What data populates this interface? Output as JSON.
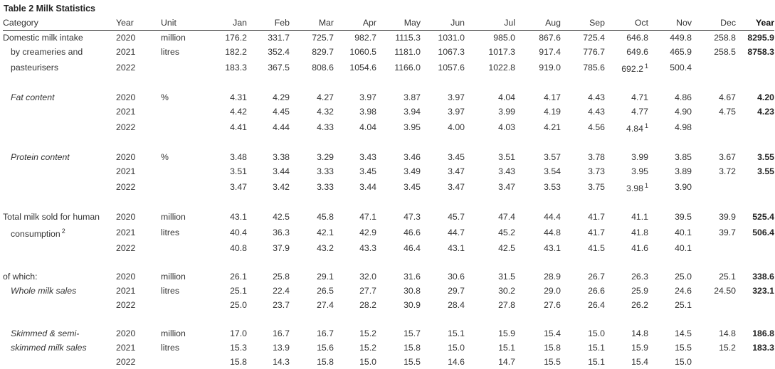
{
  "title": "Table 2 Milk Statistics",
  "header": {
    "category": "Category",
    "year": "Year",
    "unit": "Unit",
    "months": [
      "Jan",
      "Feb",
      "Mar",
      "Apr",
      "May",
      "Jun",
      "Jul",
      "Aug",
      "Sep",
      "Oct",
      "Nov",
      "Dec"
    ],
    "year_total": "Year"
  },
  "groups": [
    {
      "rows": [
        {
          "cat": "Domestic milk intake",
          "year": "2020",
          "unit": "million",
          "v": [
            "176.2",
            "331.7",
            "725.7",
            "982.7",
            "1115.3",
            "1031.0",
            "985.0",
            "867.6",
            "725.4",
            "646.8",
            "449.8",
            "258.8"
          ],
          "total": "8295.9"
        },
        {
          "cat": "by creameries and",
          "year": "2021",
          "unit": "litres",
          "v": [
            "182.2",
            "352.4",
            "829.7",
            "1060.5",
            "1181.0",
            "1067.3",
            "1017.3",
            "917.4",
            "776.7",
            "649.6",
            "465.9",
            "258.5"
          ],
          "total": "8758.3"
        },
        {
          "cat": "pasteurisers",
          "year": "2022",
          "unit": "",
          "v": [
            "183.3",
            "367.5",
            "808.6",
            "1054.6",
            "1166.0",
            "1057.6",
            "1022.8",
            "919.0",
            "785.6",
            "692.2",
            "500.4",
            ""
          ],
          "total": "",
          "sup": "1"
        }
      ]
    },
    {
      "rows": [
        {
          "cat": "Fat content",
          "year": "2020",
          "unit": "%",
          "v": [
            "4.31",
            "4.29",
            "4.27",
            "3.97",
            "3.87",
            "3.97",
            "4.04",
            "4.17",
            "4.43",
            "4.71",
            "4.86",
            "4.67"
          ],
          "total": "4.20"
        },
        {
          "cat": "",
          "year": "2021",
          "unit": "",
          "v": [
            "4.42",
            "4.45",
            "4.32",
            "3.98",
            "3.94",
            "3.97",
            "3.99",
            "4.19",
            "4.43",
            "4.77",
            "4.90",
            "4.75"
          ],
          "total": "4.23"
        },
        {
          "cat": "",
          "year": "2022",
          "unit": "",
          "v": [
            "4.41",
            "4.44",
            "4.33",
            "4.04",
            "3.95",
            "4.00",
            "4.03",
            "4.21",
            "4.56",
            "4.84",
            "4.98",
            ""
          ],
          "total": "",
          "sup": "1"
        }
      ]
    },
    {
      "rows": [
        {
          "cat": "Protein content",
          "year": "2020",
          "unit": "%",
          "v": [
            "3.48",
            "3.38",
            "3.29",
            "3.43",
            "3.46",
            "3.45",
            "3.51",
            "3.57",
            "3.78",
            "3.99",
            "3.85",
            "3.67"
          ],
          "total": "3.55"
        },
        {
          "cat": "",
          "year": "2021",
          "unit": "",
          "v": [
            "3.51",
            "3.44",
            "3.33",
            "3.45",
            "3.49",
            "3.47",
            "3.43",
            "3.54",
            "3.73",
            "3.95",
            "3.89",
            "3.72"
          ],
          "total": "3.55"
        },
        {
          "cat": "",
          "year": "2022",
          "unit": "",
          "v": [
            "3.47",
            "3.42",
            "3.33",
            "3.44",
            "3.45",
            "3.47",
            "3.47",
            "3.53",
            "3.75",
            "3.98",
            "3.90",
            ""
          ],
          "total": "",
          "sup": "1"
        }
      ]
    },
    {
      "rows": [
        {
          "cat": "Total milk sold for human",
          "year": "2020",
          "unit": "million",
          "v": [
            "43.1",
            "42.5",
            "45.8",
            "47.1",
            "47.3",
            "45.7",
            "47.4",
            "44.4",
            "41.7",
            "41.1",
            "39.5",
            "39.9"
          ],
          "total": "525.4"
        },
        {
          "cat": "consumption",
          "cat_sup": "2",
          "year": "2021",
          "unit": "litres",
          "v": [
            "40.4",
            "36.3",
            "42.1",
            "42.9",
            "46.6",
            "44.7",
            "45.2",
            "44.8",
            "41.7",
            "41.8",
            "40.1",
            "39.7"
          ],
          "total": "506.4"
        },
        {
          "cat": "",
          "year": "2022",
          "unit": "",
          "v": [
            "40.8",
            "37.9",
            "43.2",
            "43.3",
            "46.4",
            "43.1",
            "42.5",
            "43.1",
            "41.5",
            "41.6",
            "40.1",
            ""
          ],
          "total": ""
        }
      ]
    },
    {
      "rows": [
        {
          "cat": "of which:",
          "year": "2020",
          "unit": "million",
          "v": [
            "26.1",
            "25.8",
            "29.1",
            "32.0",
            "31.6",
            "30.6",
            "31.5",
            "28.9",
            "26.7",
            "26.3",
            "25.0",
            "25.1"
          ],
          "total": "338.6"
        },
        {
          "cat": "Whole milk sales",
          "year": "2021",
          "unit": "litres",
          "v": [
            "25.1",
            "22.4",
            "26.5",
            "27.7",
            "30.8",
            "29.7",
            "30.2",
            "29.0",
            "26.6",
            "25.9",
            "24.6",
            "24.50"
          ],
          "total": "323.1"
        },
        {
          "cat": "",
          "year": "2022",
          "unit": "",
          "v": [
            "25.0",
            "23.7",
            "27.4",
            "28.2",
            "30.9",
            "28.4",
            "27.8",
            "27.6",
            "26.4",
            "26.2",
            "25.1",
            ""
          ],
          "total": ""
        }
      ]
    },
    {
      "rows": [
        {
          "cat": "Skimmed  & semi-",
          "year": "2020",
          "unit": "million",
          "v": [
            "17.0",
            "16.7",
            "16.7",
            "15.2",
            "15.7",
            "15.1",
            "15.9",
            "15.4",
            "15.0",
            "14.8",
            "14.5",
            "14.8"
          ],
          "total": "186.8"
        },
        {
          "cat": "skimmed milk sales",
          "year": "2021",
          "unit": "litres",
          "v": [
            "15.3",
            "13.9",
            "15.6",
            "15.2",
            "15.8",
            "15.0",
            "15.1",
            "15.8",
            "15.1",
            "15.9",
            "15.5",
            "15.2"
          ],
          "total": "183.3"
        },
        {
          "cat": "",
          "year": "2022",
          "unit": "",
          "v": [
            "15.8",
            "14.3",
            "15.8",
            "15.0",
            "15.5",
            "14.6",
            "14.7",
            "15.5",
            "15.1",
            "15.4",
            "15.0",
            ""
          ],
          "total": ""
        }
      ]
    }
  ]
}
